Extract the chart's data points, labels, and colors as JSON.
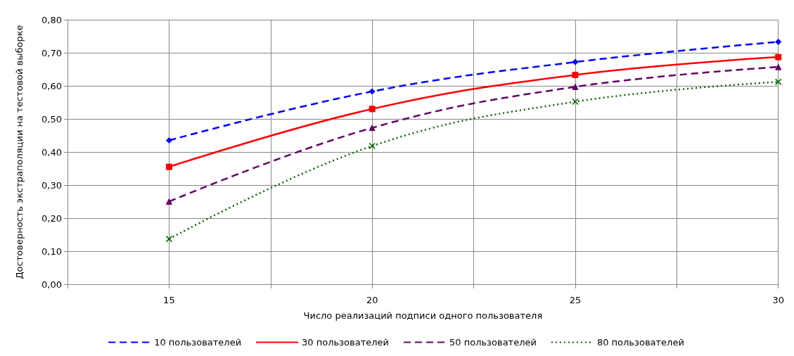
{
  "chart_data": {
    "type": "line",
    "xlabel": "Число реализаций подписи одного пользователя",
    "ylabel": "Достоверность экстраполяции на тестовой выборке",
    "x": [
      15,
      20,
      25,
      30
    ],
    "series": [
      {
        "name": "10 пользователей",
        "color": "#0000ff",
        "values": [
          0.435,
          0.583,
          0.672,
          0.733
        ],
        "marker": "diamond",
        "line_style": "dashed"
      },
      {
        "name": "30 пользователей",
        "color": "#ff0000",
        "values": [
          0.355,
          0.53,
          0.633,
          0.687
        ],
        "marker": "square",
        "line_style": "solid"
      },
      {
        "name": "50 пользователей",
        "color": "#660066",
        "values": [
          0.25,
          0.473,
          0.597,
          0.657
        ],
        "marker": "triangle",
        "line_style": "dashed"
      },
      {
        "name": "80 пользователей",
        "color": "#006600",
        "values": [
          0.137,
          0.418,
          0.552,
          0.612
        ],
        "marker": "cross",
        "line_style": "dotted"
      }
    ],
    "xlim": [
      12.5,
      30
    ],
    "xticks": [
      {
        "value": 12.5,
        "label": null
      },
      15,
      {
        "value": 17.5,
        "label": null
      },
      20,
      {
        "value": 22.5,
        "label": null
      },
      25,
      {
        "value": 27.5,
        "label": null
      },
      30
    ],
    "ylim": [
      0,
      0.8
    ],
    "yticks": [
      {
        "value": 0,
        "label": "0,00"
      },
      {
        "value": 0.1,
        "label": "0,10"
      },
      {
        "value": 0.2,
        "label": "0,20"
      },
      {
        "value": 0.3,
        "label": "0,30"
      },
      {
        "value": 0.4,
        "label": "0,40"
      },
      {
        "value": 0.5,
        "label": "0,50"
      },
      {
        "value": 0.6,
        "label": "0,60"
      },
      {
        "value": 0.7,
        "label": "0,70"
      },
      {
        "value": 0.8,
        "label": "0,80"
      }
    ],
    "grid": true,
    "legend": "bottom"
  }
}
